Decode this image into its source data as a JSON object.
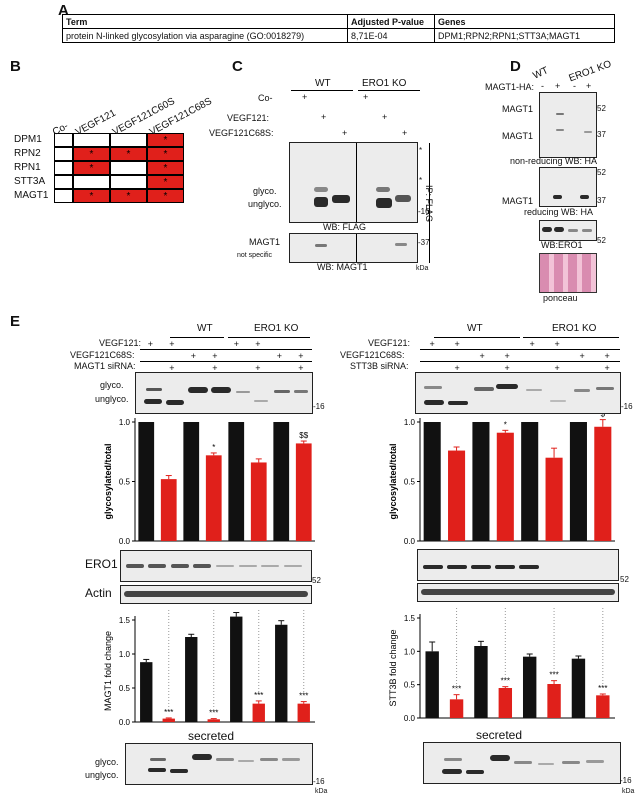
{
  "panelA": {
    "label": "A",
    "headers": [
      "Term",
      "Adjusted P-value",
      "Genes"
    ],
    "row": [
      "protein N-linked glycosylation via asparagine (GO:0018279)",
      "8,71E-04",
      "DPM1;RPN2;RPN1;STT3A;MAGT1"
    ]
  },
  "panelB": {
    "label": "B",
    "columns": [
      "Co-",
      "VEGF121",
      "VEGF121C60S",
      "VEGF121C68S"
    ],
    "rows": [
      "DPM1",
      "RPN2",
      "RPN1",
      "STT3A",
      "MAGT1"
    ],
    "cells": [
      [
        0,
        0,
        0,
        1
      ],
      [
        0,
        1,
        1,
        1
      ],
      [
        0,
        1,
        0,
        1
      ],
      [
        0,
        0,
        0,
        1
      ],
      [
        0,
        1,
        1,
        1
      ]
    ],
    "star": "*",
    "hit_color": "#e0201b"
  },
  "panelC": {
    "label": "C",
    "groups": [
      "WT",
      "ERO1 KO"
    ],
    "row_labels": [
      "Co-",
      "VEGF121:",
      "VEGF121C68S:"
    ],
    "plus": "+",
    "band_labels": [
      "glyco.",
      "unglyco."
    ],
    "marker_16": "-16",
    "marker_37": "-37",
    "asterisk": "*",
    "wb_flag": "WB: FLAG",
    "ip_flag": "IP: FLAG",
    "magt1": "MAGT1",
    "not_specific": "not specific",
    "wb_magt1": "WB: MAGT1",
    "kda": "kDa"
  },
  "panelD": {
    "label": "D",
    "groups": [
      "WT",
      "ERO1 KO"
    ],
    "row_label": "MAGT1-HA:",
    "signs": [
      "-",
      "+",
      "-",
      "+"
    ],
    "magt1": "MAGT1",
    "marker_52": "52",
    "marker_37": "37",
    "nonreducing": "non-reducing WB: HA",
    "reducing": "reducing WB: HA",
    "wb_ero1": "WB:ERO1",
    "ponceau": "ponceau"
  },
  "panelE": {
    "label": "E",
    "left": {
      "groups": [
        "WT",
        "ERO1 KO"
      ],
      "row_labels": [
        "VEGF121:",
        "VEGF121C68S:",
        "MAGT1 siRNA:"
      ],
      "band_labels": [
        "glyco.",
        "unglyco."
      ],
      "marker_16": "-16",
      "marker_52": "52",
      "ero1": "ERO1",
      "actin": "Actin",
      "secreted": "secreted",
      "kda": "kDa",
      "sig_glyco": [
        "",
        "",
        "*",
        "",
        "",
        "$$"
      ],
      "sig_fold": [
        "",
        "***",
        "",
        "***",
        "",
        "***",
        "",
        "***"
      ]
    },
    "right": {
      "groups": [
        "WT",
        "ERO1 KO"
      ],
      "row_labels": [
        "VEGF121:",
        "VEGF121C68S:",
        "STT3B siRNA:"
      ],
      "marker_16": "-16",
      "marker_52": "52",
      "secreted": "secreted",
      "kda": "kDa",
      "sig_glyco": [
        "",
        "",
        "*",
        "",
        "",
        "$"
      ],
      "sig_fold": [
        "",
        "***",
        "",
        "***",
        "",
        "***",
        "",
        "***"
      ]
    }
  },
  "chart_data": [
    {
      "type": "bar",
      "ylabel": "glycosylated/total",
      "ylim": [
        0,
        1.0
      ],
      "yticks": [
        0.0,
        0.5,
        1.0
      ],
      "values": [
        1.0,
        0.52,
        1.0,
        0.72,
        1.0,
        0.66,
        1.0,
        0.82
      ],
      "colors": [
        "#111111",
        "#e0201b",
        "#111111",
        "#e0201b",
        "#111111",
        "#e0201b",
        "#111111",
        "#e0201b"
      ]
    },
    {
      "type": "bar",
      "ylabel": "MAGT1 fold change",
      "ylim": [
        0,
        1.5
      ],
      "yticks": [
        0.0,
        0.5,
        1.0,
        1.5
      ],
      "values": [
        0.88,
        0.05,
        1.25,
        0.04,
        1.55,
        0.27,
        1.43,
        0.27
      ],
      "colors": [
        "#111111",
        "#e0201b",
        "#111111",
        "#e0201b",
        "#111111",
        "#e0201b",
        "#111111",
        "#e0201b"
      ]
    },
    {
      "type": "bar",
      "ylabel": "glycosylated/total",
      "ylim": [
        0,
        1.0
      ],
      "yticks": [
        0.0,
        0.5,
        1.0
      ],
      "values": [
        1.0,
        0.76,
        1.0,
        0.91,
        1.0,
        0.7,
        1.0,
        0.96
      ],
      "colors": [
        "#111111",
        "#e0201b",
        "#111111",
        "#e0201b",
        "#111111",
        "#e0201b",
        "#111111",
        "#e0201b"
      ]
    },
    {
      "type": "bar",
      "ylabel": "STT3B fold change",
      "ylim": [
        0,
        1.5
      ],
      "yticks": [
        0.0,
        0.5,
        1.0,
        1.5
      ],
      "values": [
        1.0,
        0.28,
        1.08,
        0.45,
        0.92,
        0.51,
        0.89,
        0.34
      ],
      "colors": [
        "#111111",
        "#e0201b",
        "#111111",
        "#e0201b",
        "#111111",
        "#e0201b",
        "#111111",
        "#e0201b"
      ]
    }
  ]
}
